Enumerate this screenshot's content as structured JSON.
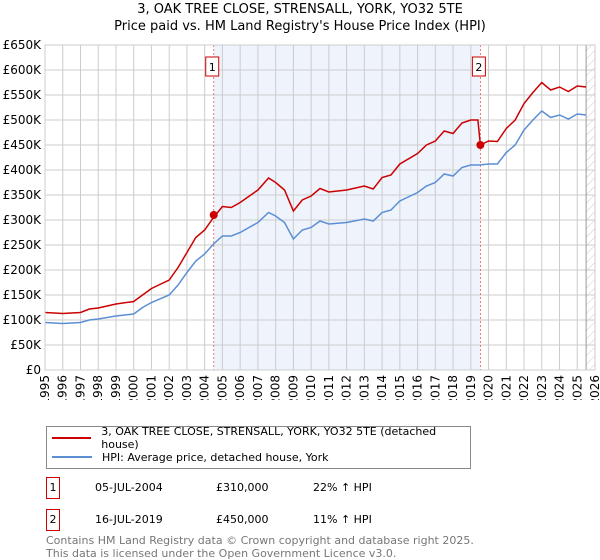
{
  "chart_data": {
    "type": "line",
    "title": "3, OAK TREE CLOSE, STRENSALL, YORK, YO32 5TE",
    "subtitle": "Price paid vs. HM Land Registry's House Price Index (HPI)",
    "xlim": [
      1995,
      2026
    ],
    "ylim": [
      0,
      650000
    ],
    "y_ticks": [
      {
        "v": 0,
        "l": "£0"
      },
      {
        "v": 50000,
        "l": "£50K"
      },
      {
        "v": 100000,
        "l": "£100K"
      },
      {
        "v": 150000,
        "l": "£150K"
      },
      {
        "v": 200000,
        "l": "£200K"
      },
      {
        "v": 250000,
        "l": "£250K"
      },
      {
        "v": 300000,
        "l": "£300K"
      },
      {
        "v": 350000,
        "l": "£350K"
      },
      {
        "v": 400000,
        "l": "£400K"
      },
      {
        "v": 450000,
        "l": "£450K"
      },
      {
        "v": 500000,
        "l": "£500K"
      },
      {
        "v": 550000,
        "l": "£550K"
      },
      {
        "v": 600000,
        "l": "£600K"
      },
      {
        "v": 650000,
        "l": "£650K"
      }
    ],
    "x_ticks": [
      "1995",
      "1996",
      "1997",
      "1998",
      "1999",
      "2000",
      "2001",
      "2002",
      "2003",
      "2004",
      "2005",
      "2006",
      "2007",
      "2008",
      "2009",
      "2010",
      "2011",
      "2012",
      "2013",
      "2014",
      "2015",
      "2016",
      "2017",
      "2018",
      "2019",
      "2020",
      "2021",
      "2022",
      "2023",
      "2024",
      "2025",
      "2026"
    ],
    "grid": true,
    "series": [
      {
        "name": "3, OAK TREE CLOSE, STRENSALL, YORK, YO32 5TE (detached house)",
        "color": "#cc0000",
        "x": [
          1995,
          1996,
          1997,
          1997.5,
          1998,
          1999,
          2000,
          2000.5,
          2001,
          2002,
          2002.5,
          2003,
          2003.5,
          2004,
          2004.5,
          2005,
          2005.5,
          2006,
          2007,
          2007.6,
          2008,
          2008.5,
          2009,
          2009.5,
          2010,
          2010.5,
          2011,
          2012,
          2013,
          2013.5,
          2014,
          2014.5,
          2015,
          2016,
          2016.5,
          2017,
          2017.5,
          2018,
          2018.5,
          2019,
          2019.4,
          2019.54,
          2020,
          2020.5,
          2021,
          2021.5,
          2022,
          2022.5,
          2023,
          2023.5,
          2024,
          2024.5,
          2025,
          2025.5
        ],
        "y": [
          115000,
          113000,
          115000,
          122000,
          124000,
          132000,
          137000,
          150000,
          163000,
          180000,
          205000,
          235000,
          265000,
          280000,
          305000,
          327000,
          325000,
          335000,
          360000,
          384000,
          375000,
          360000,
          318000,
          340000,
          348000,
          363000,
          356000,
          360000,
          368000,
          362000,
          385000,
          390000,
          412000,
          433000,
          450000,
          458000,
          478000,
          473000,
          494000,
          500000,
          500000,
          450000,
          458000,
          457000,
          483000,
          500000,
          533000,
          555000,
          575000,
          560000,
          566000,
          557000,
          568000,
          566000
        ]
      },
      {
        "name": "HPI: Average price, detached house, York",
        "color": "#5b8fd4",
        "x": [
          1995,
          1996,
          1997,
          1997.5,
          1998,
          1999,
          2000,
          2000.5,
          2001,
          2002,
          2002.5,
          2003,
          2003.5,
          2004,
          2004.5,
          2005,
          2005.5,
          2006,
          2007,
          2007.6,
          2008,
          2008.5,
          2009,
          2009.5,
          2010,
          2010.5,
          2011,
          2012,
          2013,
          2013.5,
          2014,
          2014.5,
          2015,
          2016,
          2016.5,
          2017,
          2017.5,
          2018,
          2018.5,
          2019,
          2019.5,
          2020,
          2020.5,
          2021,
          2021.5,
          2022,
          2022.5,
          2023,
          2023.5,
          2024,
          2024.5,
          2025,
          2025.5
        ],
        "y": [
          95000,
          93000,
          95000,
          100000,
          102000,
          108000,
          112000,
          125000,
          135000,
          150000,
          170000,
          195000,
          218000,
          232000,
          252000,
          268000,
          268000,
          275000,
          295000,
          315000,
          308000,
          295000,
          262000,
          280000,
          285000,
          298000,
          292000,
          295000,
          302000,
          298000,
          315000,
          320000,
          338000,
          355000,
          368000,
          375000,
          392000,
          388000,
          405000,
          410000,
          410000,
          412000,
          412000,
          435000,
          450000,
          480000,
          500000,
          518000,
          505000,
          510000,
          502000,
          512000,
          510000
        ]
      }
    ],
    "sales": [
      {
        "label": "1",
        "x": 2004.51,
        "y": 310000,
        "date": "05-JUL-2004",
        "price": "£310,000",
        "hpi": "22% ↑ HPI"
      },
      {
        "label": "2",
        "x": 2019.54,
        "y": 450000,
        "date": "16-JUL-2019",
        "price": "£450,000",
        "hpi": "11% ↑ HPI"
      }
    ],
    "shade_range": [
      2004.51,
      2019.54
    ],
    "forecast_from": 2025.5,
    "legend_position": "below"
  },
  "footer": {
    "line1": "Contains HM Land Registry data © Crown copyright and database right 2025.",
    "line2": "This data is licensed under the Open Government Licence v3.0."
  }
}
